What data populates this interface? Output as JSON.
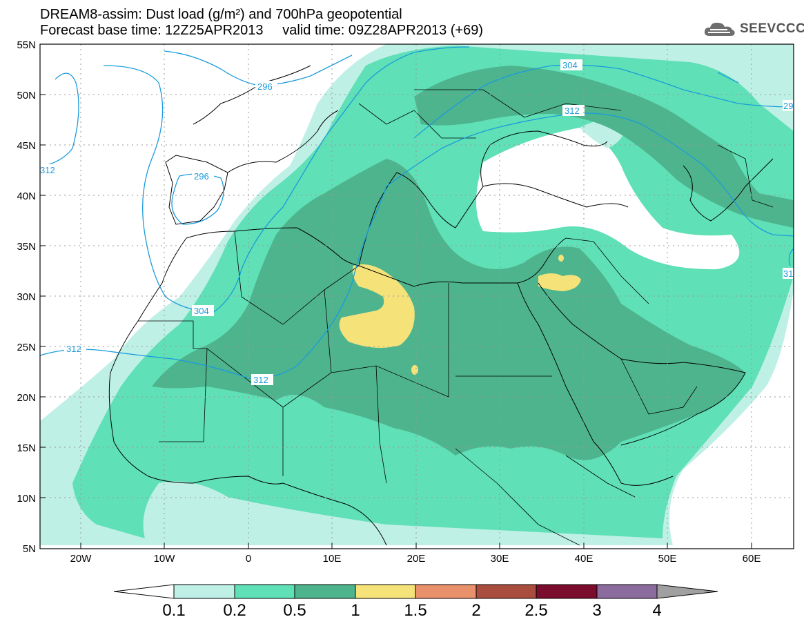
{
  "header": {
    "title_line1": "DREAM8-assim: Dust load (g/m²) and 700hPa geopotential",
    "title_line2": "Forecast base time: 12Z25APR2013     valid time: 09Z28APR2013 (+69)",
    "logo_text": "SEEVCCC"
  },
  "map": {
    "lat_labels": [
      "55N",
      "50N",
      "45N",
      "40N",
      "35N",
      "30N",
      "25N",
      "20N",
      "15N",
      "10N",
      "5N"
    ],
    "lon_labels": [
      "20W",
      "10W",
      "0",
      "10E",
      "20E",
      "30E",
      "40E",
      "50E",
      "60E"
    ],
    "contour_labels": [
      "304",
      "312",
      "296",
      "296",
      "312",
      "304",
      "312",
      "312",
      "29",
      "31"
    ],
    "contour_color": "#1a9bdc"
  },
  "colorbar": {
    "ticks": [
      "0.1",
      "0.2",
      "0.5",
      "1",
      "1.5",
      "2",
      "2.5",
      "3",
      "4"
    ],
    "colors": [
      "#bff0e6",
      "#5fe0b6",
      "#4eb48e",
      "#f5e37a",
      "#e8916a",
      "#a94d3e",
      "#7a0d2d",
      "#8c6b9e",
      "#a0a0a0"
    ]
  }
}
